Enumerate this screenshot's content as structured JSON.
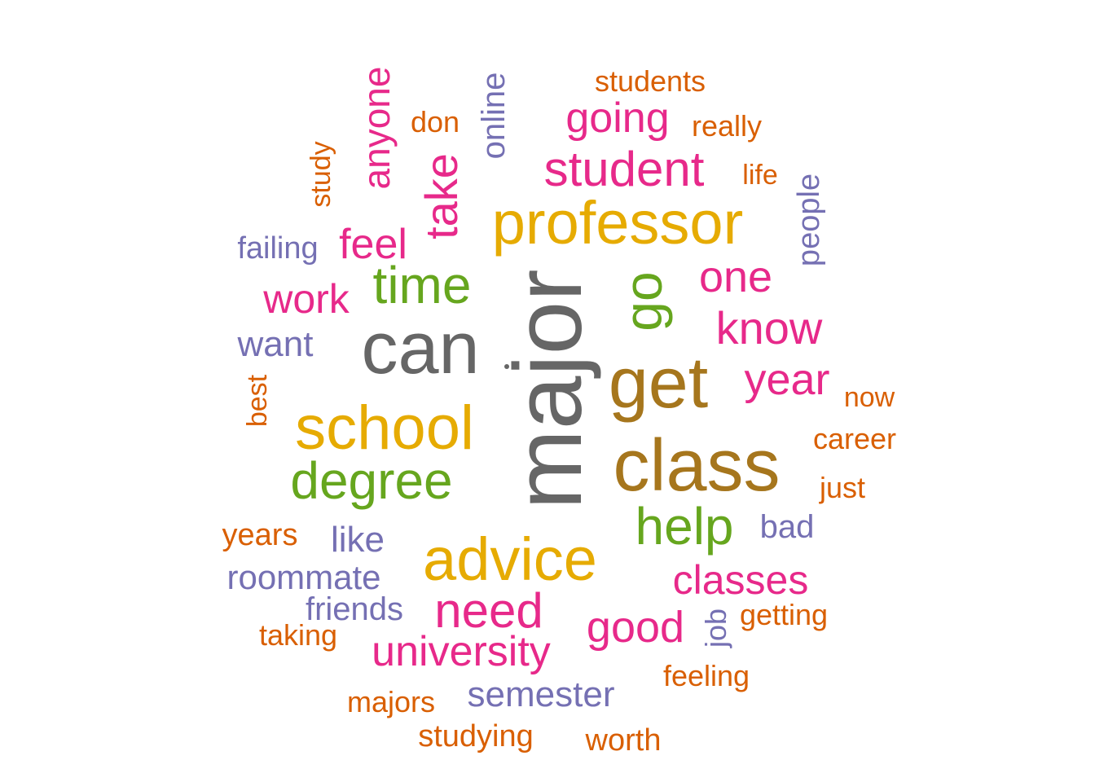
{
  "colors": {
    "gray": "#666666",
    "olive": "#A6761D",
    "gold": "#E6AB02",
    "green": "#66A61E",
    "pink": "#E7298A",
    "purple": "#7570B3",
    "orange": "#D95F02"
  },
  "words": [
    {
      "id": "major",
      "text": "major",
      "color": "#666666",
      "rotated": true
    },
    {
      "id": "can",
      "text": "can",
      "color": "#666666",
      "rotated": false
    },
    {
      "id": "get",
      "text": "get",
      "color": "#A6761D",
      "rotated": false
    },
    {
      "id": "class",
      "text": "class",
      "color": "#A6761D",
      "rotated": false
    },
    {
      "id": "professor",
      "text": "professor",
      "color": "#E6AB02",
      "rotated": false
    },
    {
      "id": "school",
      "text": "school",
      "color": "#E6AB02",
      "rotated": false
    },
    {
      "id": "advice",
      "text": "advice",
      "color": "#E6AB02",
      "rotated": false
    },
    {
      "id": "degree",
      "text": "degree",
      "color": "#66A61E",
      "rotated": false
    },
    {
      "id": "time",
      "text": "time",
      "color": "#66A61E",
      "rotated": false
    },
    {
      "id": "go",
      "text": "go",
      "color": "#66A61E",
      "rotated": true
    },
    {
      "id": "help",
      "text": "help",
      "color": "#66A61E",
      "rotated": false
    },
    {
      "id": "student",
      "text": "student",
      "color": "#E7298A",
      "rotated": false
    },
    {
      "id": "take",
      "text": "take",
      "color": "#E7298A",
      "rotated": true
    },
    {
      "id": "need",
      "text": "need",
      "color": "#E7298A",
      "rotated": false
    },
    {
      "id": "know",
      "text": "know",
      "color": "#E7298A",
      "rotated": false
    },
    {
      "id": "one",
      "text": "one",
      "color": "#E7298A",
      "rotated": false
    },
    {
      "id": "year",
      "text": "year",
      "color": "#E7298A",
      "rotated": false
    },
    {
      "id": "feel",
      "text": "feel",
      "color": "#E7298A",
      "rotated": false
    },
    {
      "id": "anyone",
      "text": "anyone",
      "color": "#E7298A",
      "rotated": true
    },
    {
      "id": "work",
      "text": "work",
      "color": "#E7298A",
      "rotated": false
    },
    {
      "id": "going",
      "text": "going",
      "color": "#E7298A",
      "rotated": false
    },
    {
      "id": "good",
      "text": "good",
      "color": "#E7298A",
      "rotated": false
    },
    {
      "id": "university",
      "text": "university",
      "color": "#E7298A",
      "rotated": false
    },
    {
      "id": "classes",
      "text": "classes",
      "color": "#E7298A",
      "rotated": false
    },
    {
      "id": "want",
      "text": "want",
      "color": "#7570B3",
      "rotated": false
    },
    {
      "id": "online",
      "text": "online",
      "color": "#7570B3",
      "rotated": true
    },
    {
      "id": "people",
      "text": "people",
      "color": "#7570B3",
      "rotated": true
    },
    {
      "id": "like",
      "text": "like",
      "color": "#7570B3",
      "rotated": false
    },
    {
      "id": "roommate",
      "text": "roommate",
      "color": "#7570B3",
      "rotated": false
    },
    {
      "id": "friends",
      "text": "friends",
      "color": "#7570B3",
      "rotated": false
    },
    {
      "id": "semester",
      "text": "semester",
      "color": "#7570B3",
      "rotated": false
    },
    {
      "id": "bad",
      "text": "bad",
      "color": "#7570B3",
      "rotated": false
    },
    {
      "id": "failing",
      "text": "failing",
      "color": "#7570B3",
      "rotated": false
    },
    {
      "id": "students",
      "text": "students",
      "color": "#D95F02",
      "rotated": false
    },
    {
      "id": "don",
      "text": "don",
      "color": "#D95F02",
      "rotated": false
    },
    {
      "id": "really",
      "text": "really",
      "color": "#D95F02",
      "rotated": false
    },
    {
      "id": "study",
      "text": "study",
      "color": "#D95F02",
      "rotated": true
    },
    {
      "id": "life",
      "text": "life",
      "color": "#D95F02",
      "rotated": false
    },
    {
      "id": "best",
      "text": "best",
      "color": "#D95F02",
      "rotated": true
    },
    {
      "id": "now",
      "text": "now",
      "color": "#D95F02",
      "rotated": false
    },
    {
      "id": "career",
      "text": "career",
      "color": "#D95F02",
      "rotated": false
    },
    {
      "id": "just",
      "text": "just",
      "color": "#D95F02",
      "rotated": false
    },
    {
      "id": "years",
      "text": "years",
      "color": "#D95F02",
      "rotated": false
    },
    {
      "id": "taking",
      "text": "taking",
      "color": "#D95F02",
      "rotated": false
    },
    {
      "id": "getting",
      "text": "getting",
      "color": "#D95F02",
      "rotated": false
    },
    {
      "id": "job",
      "text": "job",
      "color": "#7570B3",
      "rotated": true
    },
    {
      "id": "feeling",
      "text": "feeling",
      "color": "#D95F02",
      "rotated": false
    },
    {
      "id": "majors",
      "text": "majors",
      "color": "#D95F02",
      "rotated": false
    },
    {
      "id": "studying",
      "text": "studying",
      "color": "#D95F02",
      "rotated": false
    },
    {
      "id": "worth",
      "text": "worth",
      "color": "#D95F02",
      "rotated": false
    }
  ]
}
